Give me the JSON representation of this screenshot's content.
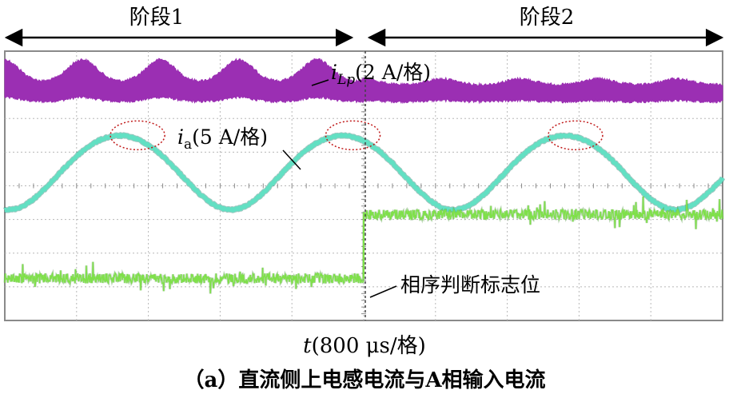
{
  "stage_labels": {
    "stage1": "阶段1",
    "stage2": "阶段2"
  },
  "time_label": {
    "var": "t",
    "text": "(800 μs/格)"
  },
  "caption": "（a）直流侧上电感电流与A相输入电流",
  "colors": {
    "background": "#ffffff",
    "grid": "#b8b8b8",
    "frame": "#8a8a8a",
    "iLp": "#9b2fb3",
    "ia": "#62e0c3",
    "flag": "#7fe04a",
    "flag_dark": "#3d8a2e",
    "ellipse": "#c01818"
  },
  "chart_data": {
    "type": "line",
    "title": "",
    "xlabel": "t(800 μs/格)",
    "ylabel": "",
    "x_divisions": 10,
    "y_divisions": 8,
    "grid": true,
    "stage_boundary_div": 5.0,
    "series": [
      {
        "name": "iLp",
        "label_var": "i",
        "label_sub": "Lp",
        "label_scale": "(2 A/格)",
        "kind": "band",
        "color": "#9b2fb3",
        "stage1": {
          "baseline_div": 1.2,
          "half_width_div": 0.3,
          "peak_div": 0.65,
          "peak_period_div": 1.09,
          "first_peak_div": 1.08
        },
        "stage2": {
          "baseline_div": 1.25,
          "half_width_div": 0.25,
          "peak_div": 0.18,
          "peak_period_div": 1.09,
          "first_peak_div": 5.0
        }
      },
      {
        "name": "ia",
        "label_var": "i",
        "label_sub": "a",
        "label_scale": "(5 A/格)",
        "kind": "sine",
        "color": "#62e0c3",
        "center_div": 3.55,
        "amplitude_div": 1.1,
        "period_div": 3.1,
        "first_max_div": 1.6
      },
      {
        "name": "相序判断标志位",
        "kind": "step",
        "color": "#7fe04a",
        "stage1_level_div": 6.75,
        "stage2_level_div": 4.85,
        "noise_div": 0.15
      }
    ],
    "annotations": [
      {
        "type": "ellipse",
        "at_div": 1.85
      },
      {
        "type": "ellipse",
        "at_div": 4.85
      },
      {
        "type": "ellipse",
        "at_div": 7.95
      }
    ]
  }
}
